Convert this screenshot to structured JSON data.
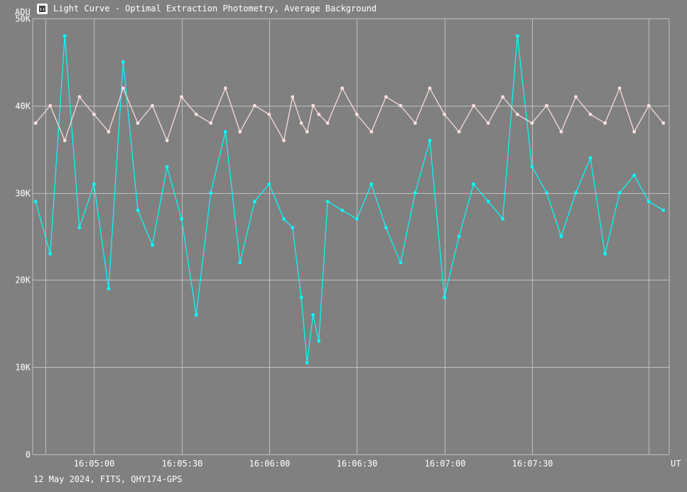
{
  "window": {
    "title": "Light Curve - Optimal Extraction Photometry, Average Background",
    "icon": "light-curve-app-icon"
  },
  "footer": {
    "label": "12 May 2024, FITS, QHY174-GPS"
  },
  "colors": {
    "background": "#808080",
    "grid": "#c0c0c0",
    "series_target": "#00ffff",
    "series_comparison": "#ffe0e0"
  },
  "chart_data": {
    "type": "line",
    "title": "Light Curve - Optimal Extraction Photometry, Average Background",
    "ylabel": "ADU",
    "xlabel": "UT",
    "ylim": [
      0,
      50000
    ],
    "y_ticks": [
      {
        "value": 0,
        "label": "0"
      },
      {
        "value": 10000,
        "label": "10K"
      },
      {
        "value": 20000,
        "label": "20K"
      },
      {
        "value": 30000,
        "label": "30K"
      },
      {
        "value": 40000,
        "label": "40K"
      },
      {
        "value": 50000,
        "label": "50K"
      }
    ],
    "x_ticks": [
      {
        "value": "16:05:00",
        "label": "16:05:00"
      },
      {
        "value": "16:05:30",
        "label": "16:05:30"
      },
      {
        "value": "16:06:00",
        "label": "16:06:00"
      },
      {
        "value": "16:06:30",
        "label": "16:06:30"
      },
      {
        "value": "16:07:00",
        "label": "16:07:00"
      },
      {
        "value": "16:07:30",
        "label": "16:07:30"
      }
    ],
    "xlim": [
      "16:04:39",
      "16:08:17"
    ],
    "grid": true,
    "series": [
      {
        "color": "#00ffff",
        "x": [
          "16:04:40",
          "16:04:45",
          "16:04:50",
          "16:04:55",
          "16:05:00",
          "16:05:05",
          "16:05:10",
          "16:05:15",
          "16:05:20",
          "16:05:25",
          "16:05:30",
          "16:05:35",
          "16:05:40",
          "16:05:45",
          "16:05:50",
          "16:05:55",
          "16:06:00",
          "16:06:05",
          "16:06:08",
          "16:06:11",
          "16:06:13",
          "16:06:15",
          "16:06:17",
          "16:06:20",
          "16:06:25",
          "16:06:30",
          "16:06:35",
          "16:06:40",
          "16:06:45",
          "16:06:50",
          "16:06:55",
          "16:07:00",
          "16:07:05",
          "16:07:10",
          "16:07:15",
          "16:07:20",
          "16:07:25",
          "16:07:30",
          "16:07:35",
          "16:07:40",
          "16:07:45",
          "16:07:50",
          "16:07:55",
          "16:08:00",
          "16:08:05",
          "16:08:10",
          "16:08:15"
        ],
        "y": [
          29000,
          23000,
          48000,
          26000,
          31000,
          19000,
          45000,
          28000,
          24000,
          33000,
          27000,
          16000,
          30000,
          37000,
          22000,
          29000,
          31000,
          27000,
          26000,
          18000,
          10500,
          16000,
          13000,
          29000,
          28000,
          27000,
          31000,
          26000,
          22000,
          30000,
          36000,
          18000,
          25000,
          31000,
          29000,
          27000,
          48000,
          33000,
          30000,
          25000,
          30000,
          34000,
          23000,
          30000,
          32000,
          29000,
          28000
        ]
      },
      {
        "color": "#ffe0e0",
        "x": [
          "16:04:40",
          "16:04:45",
          "16:04:50",
          "16:04:55",
          "16:05:00",
          "16:05:05",
          "16:05:10",
          "16:05:15",
          "16:05:20",
          "16:05:25",
          "16:05:30",
          "16:05:35",
          "16:05:40",
          "16:05:45",
          "16:05:50",
          "16:05:55",
          "16:06:00",
          "16:06:05",
          "16:06:08",
          "16:06:11",
          "16:06:13",
          "16:06:15",
          "16:06:17",
          "16:06:20",
          "16:06:25",
          "16:06:30",
          "16:06:35",
          "16:06:40",
          "16:06:45",
          "16:06:50",
          "16:06:55",
          "16:07:00",
          "16:07:05",
          "16:07:10",
          "16:07:15",
          "16:07:20",
          "16:07:25",
          "16:07:30",
          "16:07:35",
          "16:07:40",
          "16:07:45",
          "16:07:50",
          "16:07:55",
          "16:08:00",
          "16:08:05",
          "16:08:10",
          "16:08:15"
        ],
        "y": [
          38000,
          40000,
          36000,
          41000,
          39000,
          37000,
          42000,
          38000,
          40000,
          36000,
          41000,
          39000,
          38000,
          42000,
          37000,
          40000,
          39000,
          36000,
          41000,
          38000,
          37000,
          40000,
          39000,
          38000,
          42000,
          39000,
          37000,
          41000,
          40000,
          38000,
          42000,
          39000,
          37000,
          40000,
          38000,
          41000,
          39000,
          38000,
          40000,
          37000,
          41000,
          39000,
          38000,
          42000,
          37000,
          40000,
          38000
        ]
      }
    ]
  }
}
